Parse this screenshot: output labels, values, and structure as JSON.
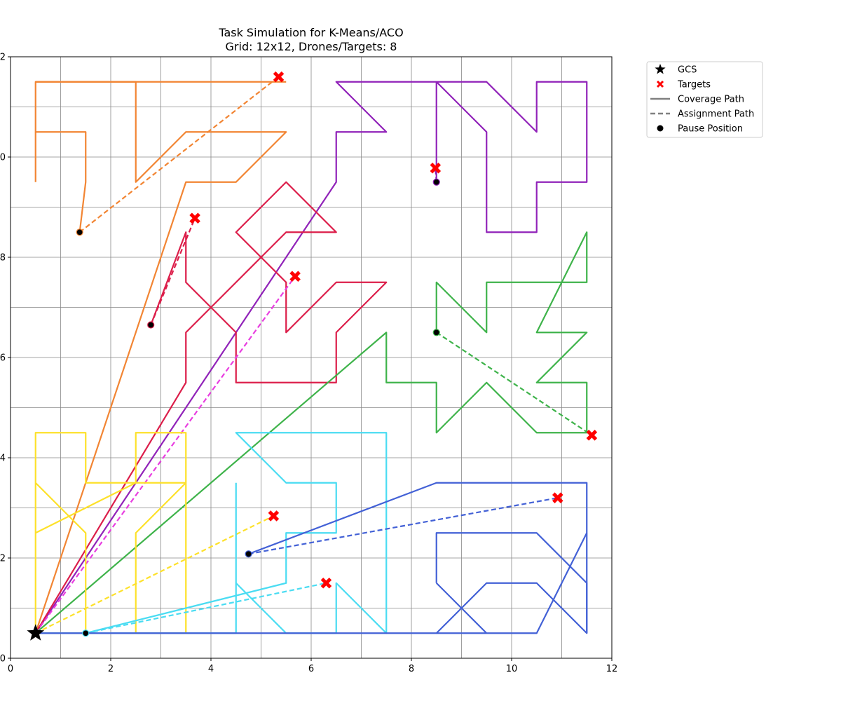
{
  "chart_data": {
    "type": "line",
    "title": "Task Simulation for K-Means/ACO",
    "subtitle": "Grid: 12x12, Drones/Targets: 8",
    "xlabel": "",
    "ylabel": "",
    "xlim": [
      0,
      12
    ],
    "ylim": [
      0,
      12
    ],
    "xticks": [
      0,
      2,
      4,
      6,
      8,
      10,
      12
    ],
    "yticks": [
      0,
      2,
      4,
      6,
      8,
      10,
      12
    ],
    "grid": true,
    "grid_step": 1,
    "legend_position": "outside-top-right",
    "legend": [
      {
        "label": "GCS",
        "kind": "star"
      },
      {
        "label": "Targets",
        "kind": "x"
      },
      {
        "label": "Coverage Path",
        "kind": "solid"
      },
      {
        "label": "Assignment Path",
        "kind": "dashed"
      },
      {
        "label": "Pause Position",
        "kind": "dot"
      }
    ],
    "gcs": [
      0.5,
      0.5
    ],
    "series": [
      {
        "color": "#f28533",
        "coverage": [
          [
            0.5,
            0.5
          ],
          [
            3.5,
            9.5
          ],
          [
            4.5,
            9.5
          ],
          [
            5.5,
            10.5
          ],
          [
            3.5,
            10.5
          ],
          [
            2.5,
            9.5
          ],
          [
            2.5,
            11.5
          ],
          [
            0.5,
            11.5
          ],
          [
            0.5,
            10.5
          ],
          [
            1.5,
            10.5
          ],
          [
            1.5,
            9.5
          ],
          [
            1.38,
            8.5
          ]
        ],
        "branch": [
          [
            0.5,
            11.5
          ],
          [
            5.5,
            11.5
          ]
        ],
        "branch2": [
          [
            0.5,
            10.5
          ],
          [
            0.5,
            9.5
          ]
        ],
        "pause": [
          1.38,
          8.5
        ],
        "target": [
          5.35,
          11.6
        ]
      },
      {
        "color": "#9123b9",
        "coverage": [
          [
            0.5,
            0.5
          ],
          [
            6.5,
            9.5
          ],
          [
            6.5,
            10.5
          ],
          [
            7.5,
            10.5
          ],
          [
            6.5,
            11.5
          ],
          [
            9.5,
            11.5
          ],
          [
            10.5,
            10.5
          ],
          [
            10.5,
            11.5
          ],
          [
            11.5,
            11.5
          ],
          [
            11.5,
            9.5
          ],
          [
            10.5,
            9.5
          ],
          [
            10.5,
            8.5
          ],
          [
            9.5,
            8.5
          ],
          [
            9.5,
            10.5
          ],
          [
            8.5,
            11.5
          ],
          [
            8.5,
            9.5
          ]
        ],
        "pause": [
          8.5,
          9.5
        ],
        "target": [
          8.48,
          9.78
        ]
      },
      {
        "color": "#dc1e4a",
        "coverage": [
          [
            0.5,
            0.5
          ],
          [
            3.5,
            5.5
          ],
          [
            3.5,
            6.5
          ],
          [
            4.5,
            7.5
          ],
          [
            5.5,
            8.5
          ],
          [
            6.5,
            8.5
          ],
          [
            5.5,
            9.5
          ],
          [
            4.5,
            8.5
          ],
          [
            5.5,
            7.5
          ],
          [
            5.5,
            6.5
          ],
          [
            6.5,
            7.5
          ],
          [
            7.5,
            7.5
          ],
          [
            6.5,
            6.5
          ],
          [
            6.5,
            5.5
          ],
          [
            4.5,
            5.5
          ],
          [
            4.5,
            6.5
          ],
          [
            3.5,
            7.5
          ],
          [
            3.5,
            8.5
          ],
          [
            2.8,
            6.65
          ]
        ],
        "pause": [
          2.8,
          6.65
        ],
        "target": [
          3.68,
          8.78
        ]
      },
      {
        "color": "#e83ee0",
        "coverage": [],
        "assign_from": [
          0.5,
          0.5
        ],
        "target": [
          5.68,
          7.62
        ]
      },
      {
        "color": "#3eb34a",
        "coverage": [
          [
            0.5,
            0.5
          ],
          [
            7.5,
            6.5
          ],
          [
            7.5,
            5.5
          ],
          [
            8.5,
            5.5
          ],
          [
            8.5,
            4.5
          ],
          [
            9.5,
            5.5
          ],
          [
            10.5,
            4.5
          ],
          [
            11.5,
            4.5
          ],
          [
            11.5,
            5.5
          ],
          [
            10.5,
            5.5
          ],
          [
            11.5,
            6.5
          ],
          [
            10.5,
            6.5
          ],
          [
            11.5,
            8.5
          ],
          [
            11.5,
            7.5
          ],
          [
            9.5,
            7.5
          ],
          [
            9.5,
            6.5
          ],
          [
            8.5,
            7.5
          ],
          [
            8.5,
            6.5
          ]
        ],
        "pause": [
          8.5,
          6.5
        ],
        "target": [
          11.6,
          4.45
        ]
      },
      {
        "color": "#fde12a",
        "coverage": [
          [
            0.5,
            0.5
          ],
          [
            0.5,
            4.5
          ],
          [
            1.5,
            4.5
          ],
          [
            1.5,
            3.5
          ],
          [
            3.5,
            3.5
          ],
          [
            2.5,
            2.5
          ],
          [
            2.5,
            0.5
          ],
          [
            3.5,
            0.5
          ],
          [
            3.5,
            4.5
          ],
          [
            2.5,
            4.5
          ],
          [
            2.5,
            3.5
          ],
          [
            0.5,
            2.5
          ],
          [
            0.5,
            3.5
          ],
          [
            1.5,
            2.5
          ],
          [
            1.5,
            0.5
          ],
          [
            0.5,
            0.5
          ]
        ],
        "assign_from": [
          0.5,
          0.5
        ],
        "target": [
          5.25,
          2.84
        ]
      },
      {
        "color": "#4adcf2",
        "coverage": [
          [
            0.5,
            0.5
          ],
          [
            4.5,
            0.5
          ],
          [
            4.5,
            1.5
          ],
          [
            5.5,
            0.5
          ],
          [
            6.5,
            0.5
          ],
          [
            6.5,
            1.5
          ],
          [
            7.5,
            0.5
          ],
          [
            7.5,
            4.5
          ],
          [
            4.5,
            4.5
          ],
          [
            5.5,
            3.5
          ],
          [
            6.5,
            3.5
          ],
          [
            6.5,
            2.5
          ],
          [
            5.5,
            2.5
          ],
          [
            5.5,
            1.5
          ],
          [
            1.5,
            0.5
          ]
        ],
        "branch": [
          [
            4.5,
            1.5
          ],
          [
            4.5,
            3.5
          ]
        ],
        "pause": [
          1.5,
          0.5
        ],
        "target": [
          6.3,
          1.5
        ]
      },
      {
        "color": "#4361d6",
        "coverage": [
          [
            0.5,
            0.5
          ],
          [
            8.5,
            0.5
          ],
          [
            9.5,
            1.5
          ],
          [
            10.5,
            1.5
          ],
          [
            11.5,
            0.5
          ],
          [
            11.5,
            2.5
          ],
          [
            11.5,
            3.5
          ],
          [
            8.5,
            3.5
          ],
          [
            4.75,
            2.08
          ]
        ],
        "branch": [
          [
            8.5,
            0.5
          ],
          [
            9.5,
            0.5
          ],
          [
            10.5,
            0.5
          ],
          [
            11.5,
            2.5
          ]
        ],
        "branch2": [
          [
            8.5,
            1.5
          ],
          [
            8.5,
            2.5
          ],
          [
            10.5,
            2.5
          ],
          [
            11.5,
            1.5
          ],
          [
            11.5,
            0.5
          ]
        ],
        "branch3": [
          [
            8.5,
            1.5
          ],
          [
            9.5,
            0.5
          ]
        ],
        "pause": [
          4.75,
          2.08
        ],
        "target": [
          10.92,
          3.2
        ]
      }
    ]
  }
}
